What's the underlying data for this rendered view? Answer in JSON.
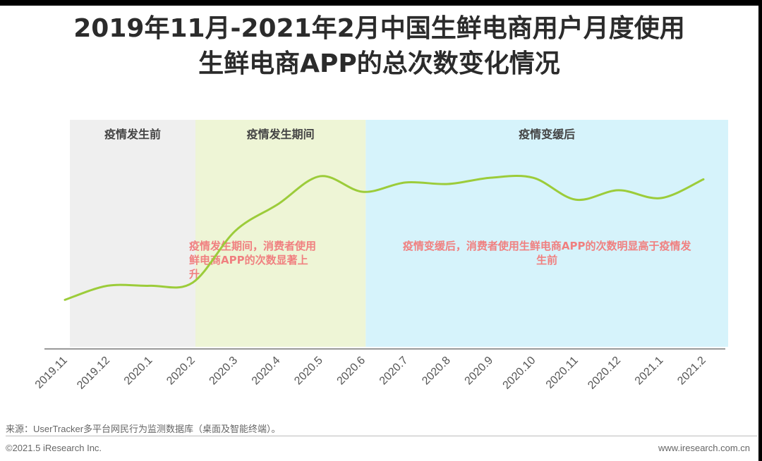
{
  "title": {
    "line1": "2019年11月-2021年2月中国生鲜电商用户月度使用",
    "line2": "生鲜电商APP的总次数变化情况"
  },
  "chart_data": {
    "type": "line",
    "x": [
      "2019.11",
      "2019.12",
      "2020.1",
      "2020.2",
      "2020.3",
      "2020.4",
      "2020.5",
      "2020.6",
      "2020.7",
      "2020.8",
      "2020.9",
      "2020.10",
      "2020.11",
      "2020.12",
      "2021.1",
      "2021.2"
    ],
    "series": [
      {
        "values": [
          30,
          39,
          39,
          41,
          74,
          91,
          109,
          99,
          105,
          104,
          108,
          108,
          94,
          100,
          95,
          107
        ]
      }
    ],
    "ylim": [
      0,
      145
    ],
    "y_axis_visible": false,
    "grid": false,
    "line_color": "#9ccc3a",
    "phases": [
      {
        "label": "疫情发生前",
        "from": "2019.11",
        "to": "2020.2",
        "color": "#efefef"
      },
      {
        "label": "疫情发生期间",
        "from": "2020.2",
        "to": "2020.6",
        "color": "#eef5d6"
      },
      {
        "label": "疫情变缓后",
        "from": "2020.6",
        "to": "2021.2",
        "color": "#d6f3fb"
      }
    ],
    "annotations": [
      {
        "phase": 1,
        "lines": [
          "疫情发生期间，消费者使用",
          "鲜电商APP的次数显著上",
          "升"
        ],
        "color": "#f08080"
      },
      {
        "phase": 2,
        "lines": [
          "疫情变缓后，消费者使用生鲜电商APP的次数明显高于疫情发",
          "生前"
        ],
        "color": "#f08080"
      }
    ]
  },
  "footer": {
    "source": "来源：UserTracker多平台网民行为监测数据库（桌面及智能终端）。",
    "copyright": "©2021.5 iResearch Inc.",
    "website": "www.iresearch.com.cn"
  }
}
